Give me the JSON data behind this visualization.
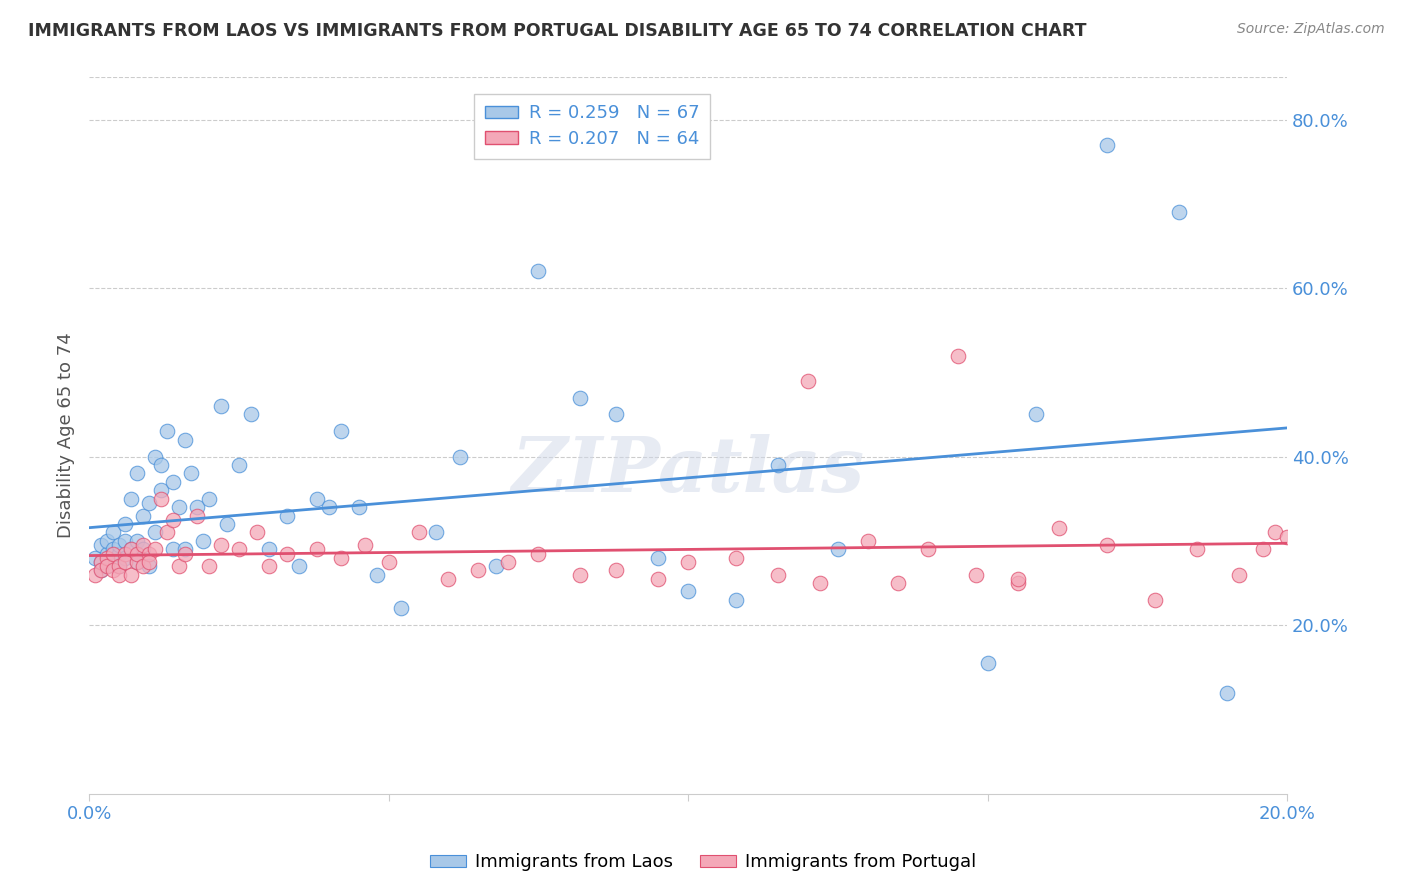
{
  "title": "IMMIGRANTS FROM LAOS VS IMMIGRANTS FROM PORTUGAL DISABILITY AGE 65 TO 74 CORRELATION CHART",
  "source": "Source: ZipAtlas.com",
  "ylabel": "Disability Age 65 to 74",
  "legend_label_1": "Immigrants from Laos",
  "legend_label_2": "Immigrants from Portugal",
  "R1": 0.259,
  "N1": 67,
  "R2": 0.207,
  "N2": 64,
  "color1": "#a8c8e8",
  "color2": "#f4a8b8",
  "line_color1": "#4a90d9",
  "line_color2": "#e05070",
  "text_color": "#4a90d9",
  "xlim": [
    0.0,
    0.2
  ],
  "ylim": [
    0.0,
    0.85
  ],
  "x_ticks": [
    0.0,
    0.05,
    0.1,
    0.15,
    0.2
  ],
  "y_ticks_right": [
    0.2,
    0.4,
    0.6,
    0.8
  ],
  "watermark": "ZIPatlas",
  "scatter1_x": [
    0.001,
    0.002,
    0.002,
    0.002,
    0.003,
    0.003,
    0.003,
    0.004,
    0.004,
    0.005,
    0.005,
    0.005,
    0.006,
    0.006,
    0.006,
    0.007,
    0.007,
    0.008,
    0.008,
    0.008,
    0.009,
    0.009,
    0.01,
    0.01,
    0.011,
    0.011,
    0.012,
    0.012,
    0.013,
    0.014,
    0.014,
    0.015,
    0.016,
    0.016,
    0.017,
    0.018,
    0.019,
    0.02,
    0.022,
    0.023,
    0.025,
    0.027,
    0.03,
    0.033,
    0.035,
    0.038,
    0.04,
    0.042,
    0.045,
    0.048,
    0.052,
    0.058,
    0.062,
    0.068,
    0.075,
    0.082,
    0.088,
    0.095,
    0.1,
    0.108,
    0.115,
    0.125,
    0.15,
    0.158,
    0.17,
    0.182,
    0.19
  ],
  "scatter1_y": [
    0.28,
    0.275,
    0.295,
    0.265,
    0.285,
    0.3,
    0.27,
    0.29,
    0.31,
    0.285,
    0.295,
    0.27,
    0.32,
    0.28,
    0.3,
    0.35,
    0.29,
    0.38,
    0.3,
    0.275,
    0.33,
    0.29,
    0.345,
    0.27,
    0.4,
    0.31,
    0.39,
    0.36,
    0.43,
    0.37,
    0.29,
    0.34,
    0.42,
    0.29,
    0.38,
    0.34,
    0.3,
    0.35,
    0.46,
    0.32,
    0.39,
    0.45,
    0.29,
    0.33,
    0.27,
    0.35,
    0.34,
    0.43,
    0.34,
    0.26,
    0.22,
    0.31,
    0.4,
    0.27,
    0.62,
    0.47,
    0.45,
    0.28,
    0.24,
    0.23,
    0.39,
    0.29,
    0.155,
    0.45,
    0.77,
    0.69,
    0.12
  ],
  "scatter2_x": [
    0.001,
    0.002,
    0.002,
    0.003,
    0.003,
    0.004,
    0.004,
    0.005,
    0.005,
    0.006,
    0.006,
    0.007,
    0.007,
    0.008,
    0.008,
    0.009,
    0.009,
    0.01,
    0.01,
    0.011,
    0.012,
    0.013,
    0.014,
    0.015,
    0.016,
    0.018,
    0.02,
    0.022,
    0.025,
    0.028,
    0.03,
    0.033,
    0.038,
    0.042,
    0.046,
    0.05,
    0.055,
    0.06,
    0.065,
    0.07,
    0.075,
    0.082,
    0.088,
    0.095,
    0.1,
    0.108,
    0.115,
    0.122,
    0.13,
    0.14,
    0.148,
    0.155,
    0.162,
    0.17,
    0.178,
    0.185,
    0.192,
    0.196,
    0.198,
    0.2,
    0.12,
    0.135,
    0.145,
    0.155
  ],
  "scatter2_y": [
    0.26,
    0.275,
    0.265,
    0.28,
    0.27,
    0.265,
    0.285,
    0.27,
    0.26,
    0.285,
    0.275,
    0.26,
    0.29,
    0.275,
    0.285,
    0.27,
    0.295,
    0.285,
    0.275,
    0.29,
    0.35,
    0.31,
    0.325,
    0.27,
    0.285,
    0.33,
    0.27,
    0.295,
    0.29,
    0.31,
    0.27,
    0.285,
    0.29,
    0.28,
    0.295,
    0.275,
    0.31,
    0.255,
    0.265,
    0.275,
    0.285,
    0.26,
    0.265,
    0.255,
    0.275,
    0.28,
    0.26,
    0.25,
    0.3,
    0.29,
    0.26,
    0.25,
    0.315,
    0.295,
    0.23,
    0.29,
    0.26,
    0.29,
    0.31,
    0.305,
    0.49,
    0.25,
    0.52,
    0.255
  ]
}
